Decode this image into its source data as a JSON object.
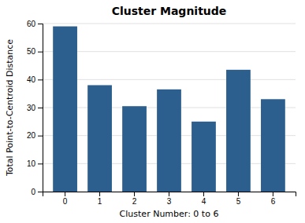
{
  "chart_data": {
    "type": "bar",
    "title": "Cluster Magnitude",
    "xlabel": "Cluster Number: 0 to 6",
    "ylabel": "Total Point-to-Centroid Distance",
    "categories": [
      0,
      1,
      2,
      3,
      4,
      5,
      6
    ],
    "values": [
      59,
      38,
      30.5,
      36.5,
      25,
      43.5,
      33
    ],
    "color": "#2d5f8e",
    "ylim": [
      0,
      60
    ],
    "yticks": [
      0,
      10,
      20,
      30,
      40,
      50,
      60
    ],
    "grid": true
  }
}
